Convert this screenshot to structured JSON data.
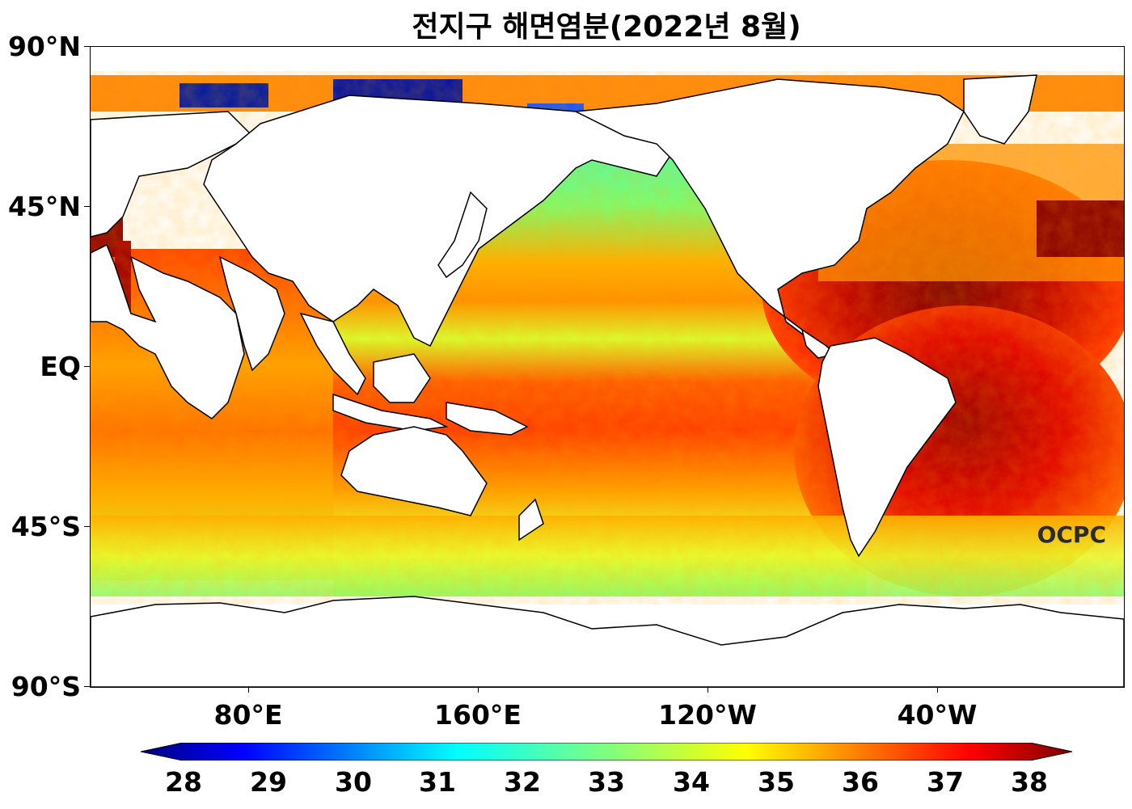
{
  "title": "전지구 해면염분(2022년 8월)",
  "logo_text": "OCPC",
  "map": {
    "projection": "equirectangular, centered at 150°W... Pacific-centered",
    "lat_labels": [
      "90°N",
      "45°N",
      "EQ",
      "45°S",
      "90°S"
    ],
    "lon_labels": [
      "80°E",
      "160°E",
      "120°W",
      "40°W"
    ],
    "ocean_colors": {
      "north_pacific": "#2fe0c0",
      "subtropical_pacific": "#ff9a10",
      "equatorial_pacific": "#c8ff30",
      "south_pacific": "#ff5010",
      "north_atlantic": "#b00000",
      "south_atlantic": "#c80000",
      "indian": "#ff6010",
      "southern_ocean": "#e8ff30",
      "arctic": "#1050ff",
      "mediterranean": "#8b0000"
    },
    "land_color": "#ffffff",
    "coastline_color": "#000000"
  },
  "colorbar": {
    "ticks": [
      "28",
      "29",
      "30",
      "31",
      "32",
      "33",
      "34",
      "35",
      "36",
      "37",
      "38"
    ],
    "colormap": "jet",
    "extend": "both"
  }
}
